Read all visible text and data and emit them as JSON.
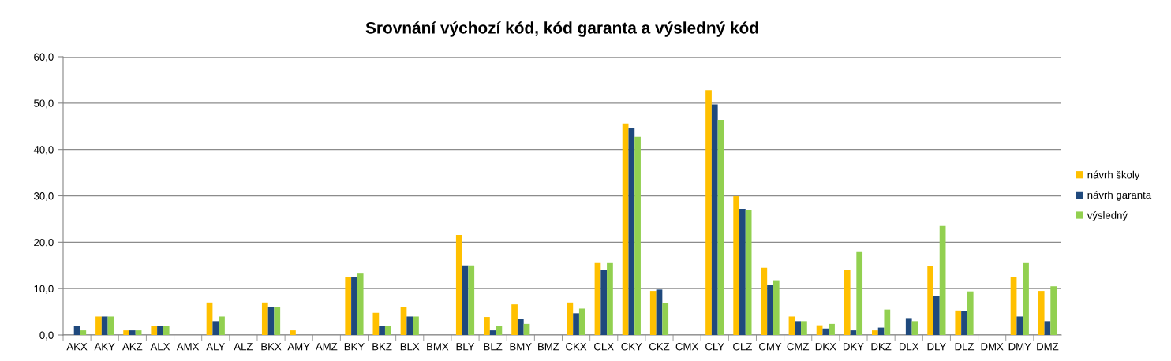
{
  "chart_data": {
    "type": "bar",
    "title": "Srovnání výchozí kód, kód garanta a výsledný kód",
    "categories": [
      "AKX",
      "AKY",
      "AKZ",
      "ALX",
      "AMX",
      "ALY",
      "ALZ",
      "BKX",
      "AMY",
      "AMZ",
      "BKY",
      "BKZ",
      "BLX",
      "BMX",
      "BLY",
      "BLZ",
      "BMY",
      "BMZ",
      "CKX",
      "CLX",
      "CKY",
      "CKZ",
      "CMX",
      "CLY",
      "CLZ",
      "CMY",
      "CMZ",
      "DKX",
      "DKY",
      "DKZ",
      "DLX",
      "DLY",
      "DLZ",
      "DMX",
      "DMY",
      "DMZ"
    ],
    "series": [
      {
        "name": "návrh školy",
        "color": "#ffc000",
        "values": [
          0,
          4,
          1,
          2,
          0,
          7,
          0,
          7,
          1,
          0,
          12.5,
          4.8,
          6,
          0,
          21.6,
          3.9,
          6.6,
          0,
          7,
          15.5,
          45.6,
          9.5,
          0,
          52.8,
          29.9,
          14.5,
          4,
          2.1,
          14,
          1,
          0,
          14.8,
          5.3,
          0,
          12.5,
          9.5
        ]
      },
      {
        "name": "návrh garanta",
        "color": "#1f497d",
        "values": [
          2,
          4,
          1,
          2,
          0,
          3,
          0,
          6,
          0,
          0,
          12.5,
          2,
          4,
          0,
          15,
          1,
          3.4,
          0,
          4.7,
          14,
          44.6,
          9.8,
          0,
          49.7,
          27.2,
          10.8,
          3,
          1.4,
          1,
          1.6,
          3.5,
          8.4,
          5.2,
          0,
          4,
          3
        ]
      },
      {
        "name": "výsledný",
        "color": "#92d050",
        "values": [
          1,
          4,
          1,
          2,
          0,
          4,
          0,
          6,
          0,
          0,
          13.4,
          2,
          4,
          0,
          15,
          1.9,
          2.4,
          0,
          5.7,
          15.5,
          42.7,
          6.8,
          0,
          46.4,
          26.9,
          11.8,
          3,
          2.4,
          17.9,
          5.5,
          3,
          23.5,
          9.4,
          0,
          15.5,
          10.5
        ]
      }
    ],
    "ylim": [
      0,
      60
    ],
    "yticks": [
      {
        "value": 0,
        "label": "0,0"
      },
      {
        "value": 10,
        "label": "10,0"
      },
      {
        "value": 20,
        "label": "20,0"
      },
      {
        "value": 30,
        "label": "30,0"
      },
      {
        "value": 40,
        "label": "40,0"
      },
      {
        "value": 50,
        "label": "50,0"
      },
      {
        "value": 60,
        "label": "60,0"
      }
    ],
    "grid": "y",
    "legend": "right"
  }
}
